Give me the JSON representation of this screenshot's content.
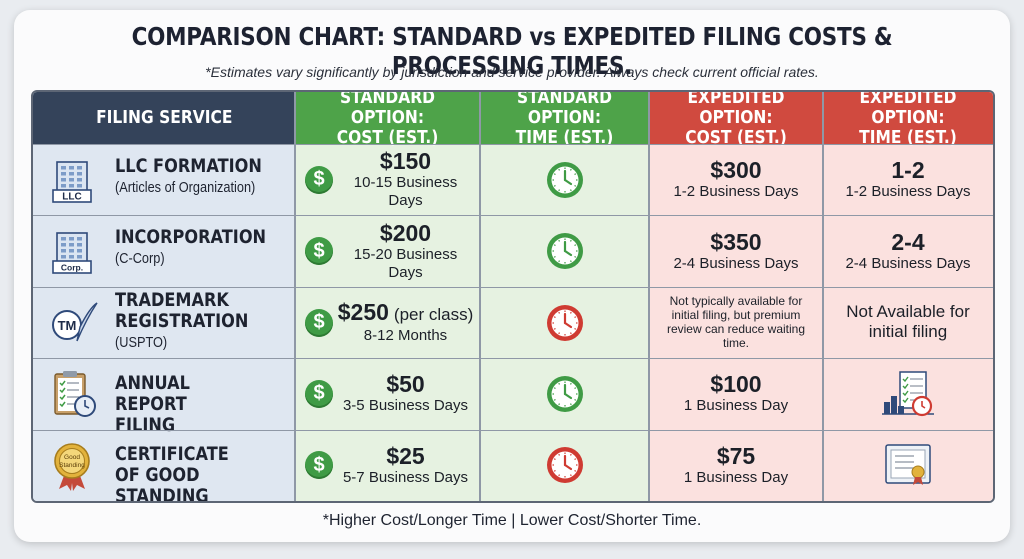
{
  "title": "COMPARISON CHART: STANDARD vs EXPEDITED FILING COSTS & PROCESSING TIMES.",
  "subtitle": "*Estimates vary significantly by jurisdiction and service provider. Always check current official rates.",
  "footer": "*Higher Cost/Longer Time | Lower Cost/Shorter Time.",
  "colors": {
    "header_service": "#34435a",
    "header_standard": "#4ea349",
    "header_expedited": "#d04a3f",
    "bg_service": "#dfe7f1",
    "bg_standard": "#e6f2e1",
    "bg_expedited": "#fbe1df",
    "clock_green": "#3f9b45",
    "clock_red": "#cf3b32"
  },
  "chart_data": {
    "type": "table",
    "columns": [
      "FILING SERVICE",
      "STANDARD OPTION: COST (EST.)",
      "STANDARD OPTION: TIME (EST.)",
      "EXPEDITED OPTION: COST (EST.)",
      "EXPEDITED OPTION: TIME (EST.)"
    ],
    "header_lines": [
      [
        "FILING SERVICE"
      ],
      [
        "STANDARD OPTION:",
        "COST (EST.)"
      ],
      [
        "STANDARD OPTION:",
        "TIME (EST.)"
      ],
      [
        "EXPEDITED OPTION:",
        "COST (EST.)"
      ],
      [
        "EXPEDITED OPTION:",
        "TIME (EST.)"
      ]
    ],
    "rows": [
      {
        "service": "LLC FORMATION",
        "service_sub": "(Articles of Organization)",
        "icon": "building-llc-icon",
        "std_cost": "$150",
        "std_cost_note": "",
        "std_time": "10-15 Business Days",
        "std_clock": "green",
        "exp_cost": "$300",
        "exp_cost_detail": "1-2 Business Days",
        "exp_time": "1-2",
        "exp_time_detail": "1-2 Business Days"
      },
      {
        "service": "INCORPORATION",
        "service_sub": "(C-Corp)",
        "icon": "building-corp-icon",
        "std_cost": "$200",
        "std_cost_note": "",
        "std_time": "15-20 Business Days",
        "std_clock": "green",
        "exp_cost": "$350",
        "exp_cost_detail": "2-4 Business Days",
        "exp_time": "2-4",
        "exp_time_detail": "2-4 Business Days"
      },
      {
        "service": "TRADEMARK REGISTRATION",
        "service_sub": "(USPTO)",
        "icon": "trademark-quill-icon",
        "std_cost": "$250",
        "std_cost_note": "(per class)",
        "std_time": "8-12 Months",
        "std_clock": "red",
        "exp_cost_text": "Not typically available for initial filing, but premium review can reduce waiting time.",
        "exp_time_text": "Not Available for initial filing"
      },
      {
        "service": "ANNUAL REPORT FILING",
        "service_sub": "",
        "icon": "clipboard-clock-icon",
        "std_cost": "$50",
        "std_cost_note": "",
        "std_time": "3-5 Business Days",
        "std_clock": "green",
        "exp_cost": "$100",
        "exp_cost_detail": "1 Business Day",
        "exp_time_icon": "report-chart-clock-icon"
      },
      {
        "service": "CERTIFICATE OF GOOD STANDING",
        "service_sub": "",
        "icon": "good-standing-seal-icon",
        "icon_text": "Good Standing",
        "std_cost": "$25",
        "std_cost_note": "",
        "std_time": "5-7 Business Days",
        "std_clock": "red",
        "exp_cost": "$75",
        "exp_cost_detail": "1 Business Day",
        "exp_time_icon": "certificate-icon"
      }
    ]
  }
}
